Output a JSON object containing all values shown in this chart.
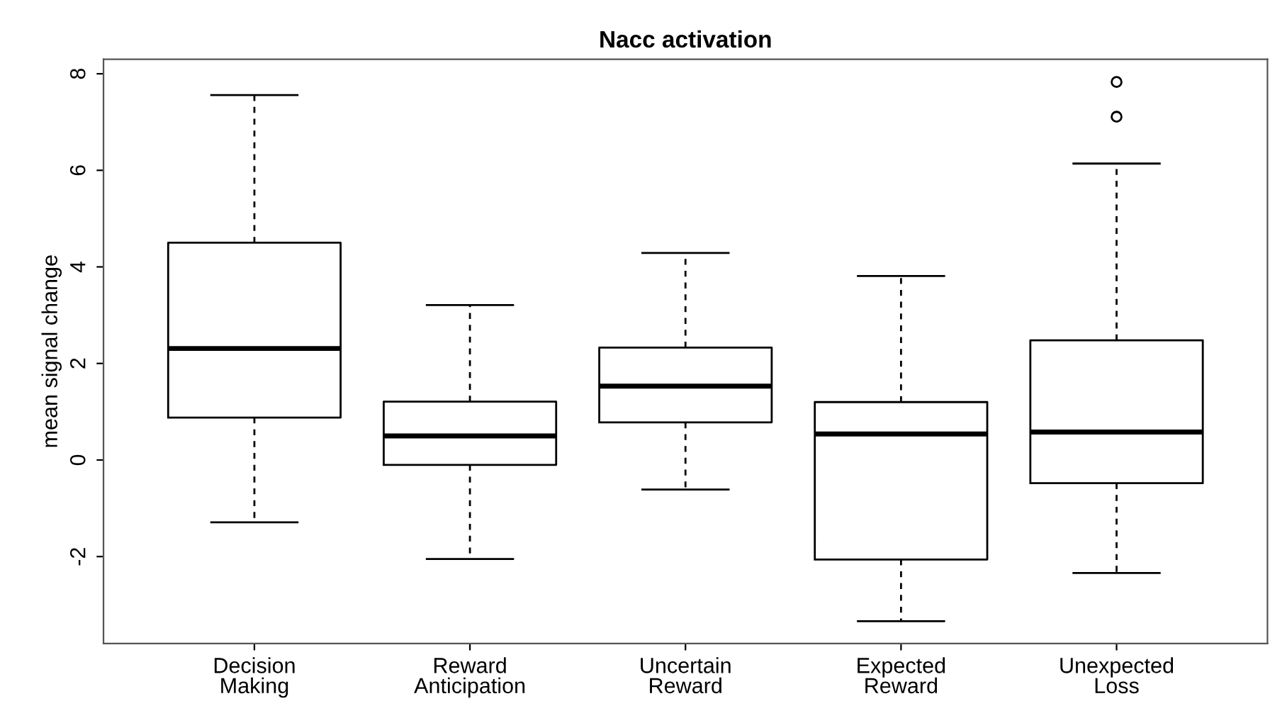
{
  "chart_data": {
    "type": "box",
    "title": "Nacc activation",
    "ylabel": "mean signal change",
    "categories": [
      "Decision Making",
      "Reward Anticipation",
      "Uncertain Reward",
      "Expected Reward",
      "Unexpected Loss"
    ],
    "boxes": [
      {
        "low": -1.29,
        "q1": 0.88,
        "median": 2.31,
        "q3": 4.5,
        "high": 7.56
      },
      {
        "low": -2.05,
        "q1": -0.1,
        "median": 0.5,
        "q3": 1.21,
        "high": 3.21
      },
      {
        "low": -0.61,
        "q1": 0.78,
        "median": 1.53,
        "q3": 2.33,
        "high": 4.29
      },
      {
        "low": -3.34,
        "q1": -2.06,
        "median": 0.54,
        "q3": 1.2,
        "high": 3.81
      },
      {
        "low": -2.34,
        "q1": -0.48,
        "median": 0.58,
        "q3": 2.48,
        "high": 6.14,
        "outliers": [
          7.83,
          7.11
        ]
      }
    ],
    "ylim": [
      -3.8,
      8.3
    ],
    "yticks": [
      -2,
      0,
      2,
      4,
      6,
      8
    ],
    "grid": false
  }
}
